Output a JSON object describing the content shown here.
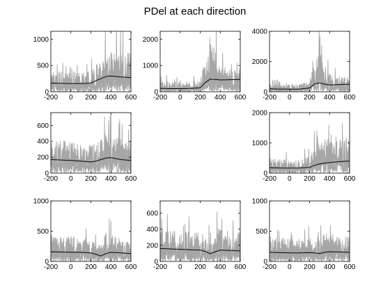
{
  "title": "PDel at each direction",
  "colors": {
    "trace": "#a6a6a6",
    "mean": "#000000",
    "axis": "#000000",
    "background": "#ffffff"
  },
  "chart_data": [
    {
      "type": "line",
      "row": 0,
      "col": 0,
      "xlim": [
        -200,
        600
      ],
      "ylim": [
        0,
        1150
      ],
      "xticks": [
        -200,
        0,
        200,
        400,
        600
      ],
      "yticks": [
        0,
        500,
        1000
      ],
      "xticklabels": [
        "-200",
        "0",
        "200",
        "400",
        "600"
      ],
      "yticklabels": [
        "0",
        "500",
        "1000"
      ],
      "mean": {
        "x": [
          -200,
          -100,
          0,
          100,
          200,
          250,
          300,
          350,
          400,
          500,
          600
        ],
        "y": [
          165,
          160,
          155,
          155,
          165,
          210,
          250,
          290,
          300,
          280,
          270
        ]
      },
      "band": {
        "x": [
          -200,
          -100,
          0,
          100,
          200,
          250,
          300,
          350,
          400,
          500,
          600
        ],
        "y": [
          420,
          400,
          390,
          380,
          420,
          520,
          650,
          780,
          820,
          760,
          730
        ]
      }
    },
    {
      "type": "line",
      "row": 0,
      "col": 1,
      "xlim": [
        -200,
        600
      ],
      "ylim": [
        0,
        2300
      ],
      "xticks": [
        -200,
        0,
        200,
        400,
        600
      ],
      "yticks": [
        0,
        1000,
        2000
      ],
      "xticklabels": [
        "-200",
        "0",
        "200",
        "400",
        "600"
      ],
      "yticklabels": [
        "0",
        "1000",
        "2000"
      ],
      "mean": {
        "x": [
          -200,
          -100,
          0,
          100,
          200,
          250,
          300,
          350,
          400,
          500,
          600
        ],
        "y": [
          130,
          120,
          120,
          125,
          150,
          350,
          480,
          470,
          450,
          460,
          470
        ]
      },
      "band": {
        "x": [
          -200,
          -100,
          0,
          100,
          200,
          250,
          300,
          350,
          400,
          500,
          600
        ],
        "y": [
          420,
          400,
          380,
          400,
          450,
          1300,
          1900,
          1600,
          1000,
          850,
          900
        ]
      }
    },
    {
      "type": "line",
      "row": 0,
      "col": 2,
      "xlim": [
        -200,
        600
      ],
      "ylim": [
        0,
        4000
      ],
      "xticks": [
        -200,
        0,
        200,
        400,
        600
      ],
      "yticks": [
        0,
        2000,
        4000
      ],
      "xticklabels": [
        "-200",
        "0",
        "200",
        "400",
        "600"
      ],
      "yticklabels": [
        "0",
        "2000",
        "4000"
      ],
      "mean": {
        "x": [
          -200,
          -100,
          0,
          100,
          200,
          250,
          300,
          350,
          400,
          500,
          600
        ],
        "y": [
          200,
          180,
          170,
          180,
          250,
          520,
          600,
          500,
          450,
          480,
          500
        ]
      },
      "band": {
        "x": [
          -200,
          -100,
          0,
          100,
          200,
          250,
          300,
          350,
          400,
          500,
          600
        ],
        "y": [
          550,
          500,
          480,
          520,
          700,
          2200,
          3000,
          2000,
          1200,
          1000,
          1000
        ]
      }
    },
    {
      "type": "line",
      "row": 1,
      "col": 0,
      "xlim": [
        -200,
        600
      ],
      "ylim": [
        0,
        760
      ],
      "xticks": [
        -200,
        0,
        200,
        400,
        600
      ],
      "yticks": [
        0,
        200,
        400,
        600
      ],
      "xticklabels": [
        "-200",
        "0",
        "200",
        "400",
        "600"
      ],
      "yticklabels": [
        "0",
        "200",
        "400",
        "600"
      ],
      "mean": {
        "x": [
          -200,
          -100,
          0,
          100,
          200,
          250,
          300,
          350,
          400,
          500,
          600
        ],
        "y": [
          170,
          165,
          160,
          150,
          140,
          150,
          170,
          190,
          195,
          170,
          160
        ]
      },
      "band": {
        "x": [
          -200,
          -100,
          0,
          100,
          200,
          250,
          300,
          350,
          400,
          500,
          600
        ],
        "y": [
          430,
          420,
          400,
          380,
          360,
          380,
          440,
          520,
          500,
          430,
          420
        ]
      }
    },
    {
      "type": "line",
      "row": 1,
      "col": 2,
      "xlim": [
        -200,
        600
      ],
      "ylim": [
        0,
        2000
      ],
      "xticks": [
        -200,
        0,
        200,
        400,
        600
      ],
      "yticks": [
        0,
        1000,
        2000
      ],
      "xticklabels": [
        "-200",
        "0",
        "200",
        "400",
        "600"
      ],
      "yticklabels": [
        "0",
        "1000",
        "2000"
      ],
      "mean": {
        "x": [
          -200,
          -100,
          0,
          100,
          200,
          250,
          300,
          350,
          400,
          500,
          600
        ],
        "y": [
          180,
          170,
          165,
          170,
          190,
          260,
          300,
          330,
          350,
          380,
          400
        ]
      },
      "band": {
        "x": [
          -200,
          -100,
          0,
          100,
          200,
          250,
          300,
          350,
          400,
          500,
          600
        ],
        "y": [
          500,
          470,
          450,
          470,
          550,
          900,
          1100,
          1250,
          1300,
          1250,
          1200
        ]
      }
    },
    {
      "type": "line",
      "row": 2,
      "col": 0,
      "xlim": [
        -200,
        600
      ],
      "ylim": [
        0,
        1000
      ],
      "xticks": [
        -200,
        0,
        200,
        400,
        600
      ],
      "yticks": [
        0,
        500,
        1000
      ],
      "xticklabels": [
        "-200",
        "0",
        "200",
        "400",
        "600"
      ],
      "yticklabels": [
        "0",
        "500",
        "1000"
      ],
      "mean": {
        "x": [
          -200,
          -100,
          0,
          100,
          200,
          250,
          300,
          350,
          400,
          500,
          600
        ],
        "y": [
          160,
          155,
          150,
          150,
          140,
          120,
          90,
          130,
          150,
          140,
          130
        ]
      },
      "band": {
        "x": [
          -200,
          -100,
          0,
          100,
          200,
          250,
          300,
          350,
          400,
          500,
          600
        ],
        "y": [
          450,
          430,
          420,
          400,
          380,
          320,
          260,
          480,
          440,
          380,
          360
        ]
      }
    },
    {
      "type": "line",
      "row": 2,
      "col": 1,
      "xlim": [
        -200,
        600
      ],
      "ylim": [
        0,
        750
      ],
      "xticks": [
        -200,
        0,
        200,
        400,
        600
      ],
      "yticks": [
        0,
        200,
        400,
        600
      ],
      "xticklabels": [
        "-200",
        "0",
        "200",
        "400",
        "600"
      ],
      "yticklabels": [
        "0",
        "200",
        "400",
        "600"
      ],
      "mean": {
        "x": [
          -200,
          -100,
          0,
          100,
          200,
          250,
          300,
          350,
          400,
          500,
          600
        ],
        "y": [
          160,
          155,
          150,
          145,
          140,
          125,
          95,
          120,
          140,
          135,
          130
        ]
      },
      "band": {
        "x": [
          -200,
          -100,
          0,
          100,
          200,
          250,
          300,
          350,
          400,
          500,
          600
        ],
        "y": [
          400,
          390,
          380,
          370,
          360,
          330,
          280,
          400,
          420,
          380,
          360
        ]
      }
    },
    {
      "type": "line",
      "row": 2,
      "col": 2,
      "xlim": [
        -200,
        600
      ],
      "ylim": [
        0,
        1000
      ],
      "xticks": [
        -200,
        0,
        200,
        400,
        600
      ],
      "yticks": [
        0,
        500,
        1000
      ],
      "xticklabels": [
        "-200",
        "0",
        "200",
        "400",
        "600"
      ],
      "yticklabels": [
        "0",
        "500",
        "1000"
      ],
      "mean": {
        "x": [
          -200,
          -100,
          0,
          100,
          200,
          250,
          300,
          350,
          400,
          500,
          600
        ],
        "y": [
          150,
          145,
          140,
          140,
          145,
          140,
          130,
          150,
          160,
          155,
          150
        ]
      },
      "band": {
        "x": [
          -200,
          -100,
          0,
          100,
          200,
          250,
          300,
          350,
          400,
          500,
          600
        ],
        "y": [
          420,
          400,
          390,
          380,
          380,
          370,
          360,
          470,
          520,
          430,
          420
        ]
      }
    }
  ]
}
